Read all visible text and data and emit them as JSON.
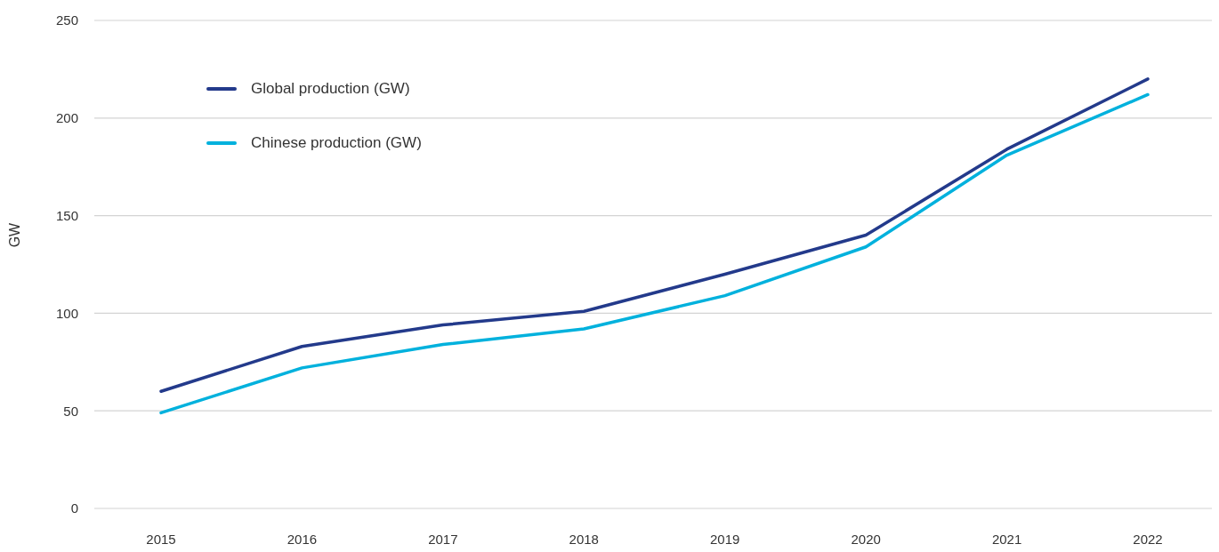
{
  "chart_data": {
    "type": "line",
    "ylabel": "GW",
    "categories": [
      "2015",
      "2016",
      "2017",
      "2018",
      "2019",
      "2020",
      "2021",
      "2022"
    ],
    "series": [
      {
        "name": "Global production (GW)",
        "color": "#233a8b",
        "values": [
          60,
          83,
          94,
          101,
          120,
          140,
          184,
          220
        ]
      },
      {
        "name": "Chinese production (GW)",
        "color": "#00b1dd",
        "values": [
          49,
          72,
          84,
          92,
          109,
          134,
          181,
          212
        ]
      }
    ],
    "ylim": [
      0,
      250
    ],
    "yticks": [
      0,
      50,
      100,
      150,
      200,
      250
    ],
    "grid": "y",
    "legend": "top left",
    "line_style": "solid"
  }
}
